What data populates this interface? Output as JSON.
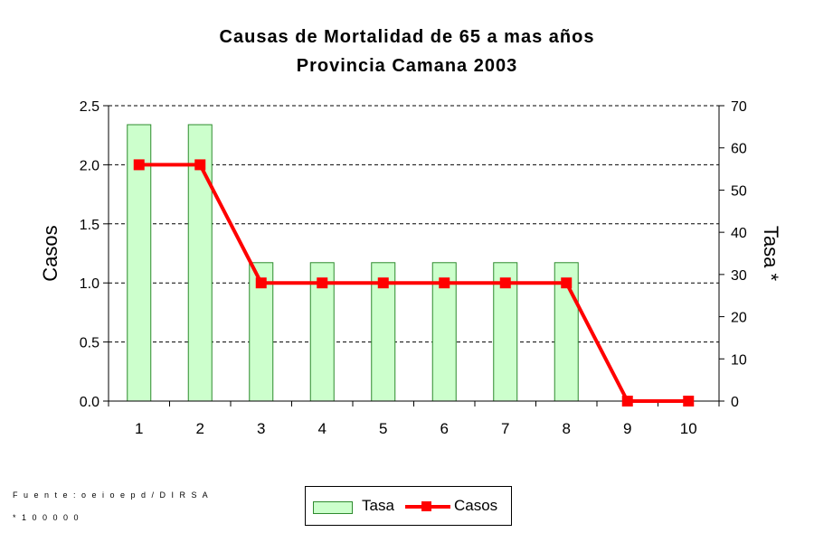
{
  "chart_data": {
    "type": "bar+line",
    "title": "Causas de Mortalidad de 65 a mas años",
    "subtitle": "Provincia Camana 2003",
    "categories": [
      "1",
      "2",
      "3",
      "4",
      "5",
      "6",
      "7",
      "8",
      "9",
      "10"
    ],
    "series": [
      {
        "name": "Tasa",
        "type": "bar",
        "axis": "right",
        "values": [
          65.5,
          65.5,
          32.8,
          32.8,
          32.8,
          32.8,
          32.8,
          32.8,
          0,
          0
        ]
      },
      {
        "name": "Casos",
        "type": "line",
        "axis": "left",
        "values": [
          2,
          2,
          1,
          1,
          1,
          1,
          1,
          1,
          0,
          0
        ]
      }
    ],
    "ylabel": "Casos",
    "y2label": "Tasa *",
    "ylim": [
      0,
      2.5
    ],
    "y2lim": [
      0,
      70
    ],
    "yticks": [
      "0.0",
      "0.5",
      "1.0",
      "1.5",
      "2.0",
      "2.5"
    ],
    "y2ticks": [
      "0",
      "10",
      "20",
      "30",
      "40",
      "50",
      "60",
      "70"
    ],
    "grid": "dashed horizontal at left-axis ticks",
    "legend_position": "bottom-center",
    "colors": {
      "bar_fill": "#ccffcc",
      "bar_stroke": "#2e8b2e",
      "line": "#ff0000"
    }
  },
  "footnotes": {
    "source": "F u e n t e : o e i o e p d / D I R S A",
    "note": "* 1 0 0 0 0 0"
  }
}
